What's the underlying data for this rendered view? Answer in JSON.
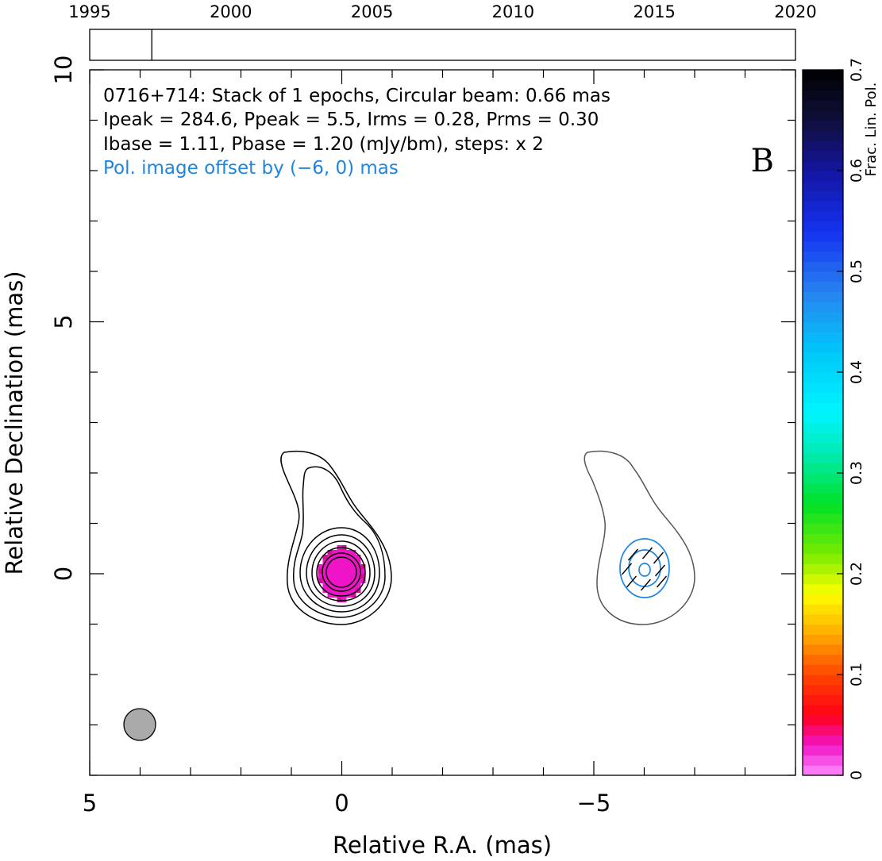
{
  "chart_data": {
    "type": "contour",
    "source": "0716+714",
    "annotations": {
      "line1": "0716+714: Stack of 1 epochs, Circular beam: 0.66 mas",
      "line2": "Ipeak = 284.6, Ppeak = 5.5, Irms = 0.28, Prms = 0.30",
      "line3": "Ibase = 1.11, Pbase = 1.20 (mJy/bm), steps: x 2",
      "offset_note": "Pol. image offset by (−6, 0) mas",
      "panel_letter": "B"
    },
    "xlabel": "Relative R.A. (mas)",
    "ylabel": "Relative Declination (mas)",
    "xlim": [
      5,
      -9
    ],
    "ylim": [
      -4,
      10
    ],
    "x_ticks": [
      {
        "value": 5,
        "label": "5"
      },
      {
        "value": 0,
        "label": "0"
      },
      {
        "value": -5,
        "label": "−5"
      }
    ],
    "y_ticks": [
      {
        "value": 0,
        "label": "0"
      },
      {
        "value": 5,
        "label": "5"
      },
      {
        "value": 10,
        "label": "10"
      }
    ],
    "beam": {
      "ra": 4.0,
      "dec": -3.0,
      "fwhm_mas": 0.66
    },
    "stokes_i_contour_peaks": {
      "ra": 0.0,
      "dec": 0.0
    },
    "frac_pol_patch": {
      "ra": 0.0,
      "dec": 0.0
    },
    "pol_image_center": {
      "ra": -6.0,
      "dec": 0.0
    },
    "timeline": {
      "xlim": [
        1995,
        2020
      ],
      "ticks": [
        {
          "value": 1995,
          "label": "1995"
        },
        {
          "value": 2000,
          "label": "2000"
        },
        {
          "value": 2005,
          "label": "2005"
        },
        {
          "value": 2010,
          "label": "2010"
        },
        {
          "value": 2015,
          "label": "2015"
        },
        {
          "value": 2020,
          "label": "2020"
        }
      ],
      "epochs": [
        1997.2
      ]
    },
    "colorbar": {
      "label": "Frac. Lin. Pol.",
      "range": [
        0,
        0.7
      ],
      "ticks": [
        {
          "value": 0,
          "label": "0"
        },
        {
          "value": 0.1,
          "label": "0.1"
        },
        {
          "value": 0.2,
          "label": "0.2"
        },
        {
          "value": 0.3,
          "label": "0.3"
        },
        {
          "value": 0.4,
          "label": "0.4"
        },
        {
          "value": 0.5,
          "label": "0.5"
        },
        {
          "value": 0.6,
          "label": "0.6"
        },
        {
          "value": 0.7,
          "label": "0.7"
        }
      ]
    },
    "colors": {
      "stokes_i_contours": "#000000",
      "pol_contours": "#1f86e0",
      "pol_i_outline": "#555555",
      "beam_fill": "#aaaaaa",
      "frac_pol_patch": "#f014c8",
      "offset_note_text": "#1f86e0"
    }
  }
}
